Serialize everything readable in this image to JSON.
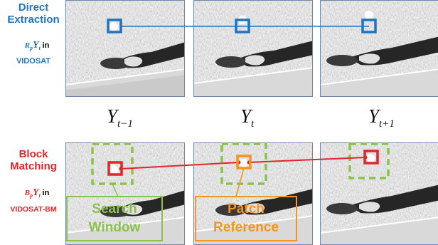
{
  "top_label": {
    "line1": "Direct",
    "line2": "Extraction",
    "sym_letter": "R",
    "sym_sub": "p",
    "sym_y": "Y",
    "sym_t": "t",
    "in": "in",
    "dataset": "VIDOSAT"
  },
  "bottom_label": {
    "line1": "Block",
    "line2": "Matching",
    "sym_letter": "B",
    "sym_sub": "p",
    "sym_y": "Y",
    "sym_t": "t",
    "in": "in",
    "dataset": "VIDOSAT-BM"
  },
  "frame_labels": [
    {
      "base": "Y",
      "sub": "t−1"
    },
    {
      "base": "Y",
      "sub": "t"
    },
    {
      "base": "Y",
      "sub": "t+1"
    }
  ],
  "annotations": {
    "search_window": {
      "line1": "Search",
      "line2": "Window"
    },
    "patch_reference": {
      "line1": "Patch",
      "line2": "Reference"
    }
  },
  "colors": {
    "blue": "#1f73bf",
    "red": "#e0262a",
    "green": "#8bc34a",
    "orange": "#f7941d"
  }
}
